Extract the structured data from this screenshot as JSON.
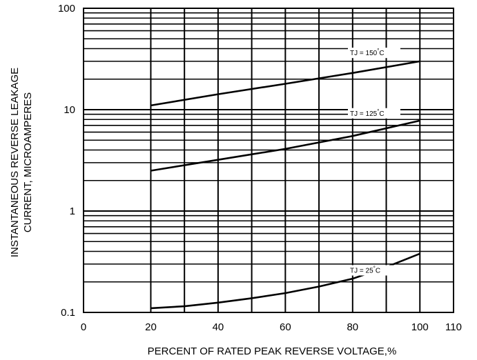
{
  "chart_data": {
    "type": "line",
    "y_scale": "log",
    "xlabel": "PERCENT OF RATED PEAK REVERSE VOLTAGE,%",
    "ylabel_lines": [
      "INSTANTANEOUS REVERSE LEAKAGE",
      "CURRENT, MICROAMPERES"
    ],
    "xlim": [
      0,
      110
    ],
    "ylim": [
      0.1,
      100
    ],
    "x_ticks": [
      "0",
      "20",
      "40",
      "60",
      "80",
      "100",
      "110"
    ],
    "y_ticks": [
      "0.1",
      "1",
      "10",
      "100"
    ],
    "grid": true,
    "series": [
      {
        "name": "TJ = 150°C",
        "label_parts": [
          "TJ = 150",
          "°",
          "C"
        ],
        "x": [
          20,
          40,
          60,
          80,
          100
        ],
        "y": [
          11,
          14.2,
          18,
          23,
          30
        ]
      },
      {
        "name": "TJ = 125°C",
        "label_parts": [
          "TJ = 125",
          "°",
          "C"
        ],
        "x": [
          20,
          40,
          60,
          80,
          100
        ],
        "y": [
          2.5,
          3.2,
          4.1,
          5.5,
          7.8
        ]
      },
      {
        "name": "TJ = 25°C",
        "label_parts": [
          "TJ = 25",
          "°",
          "C"
        ],
        "x": [
          20,
          30,
          40,
          50,
          60,
          70,
          80,
          90,
          100
        ],
        "y": [
          0.11,
          0.115,
          0.125,
          0.138,
          0.155,
          0.18,
          0.215,
          0.28,
          0.38
        ]
      }
    ]
  }
}
